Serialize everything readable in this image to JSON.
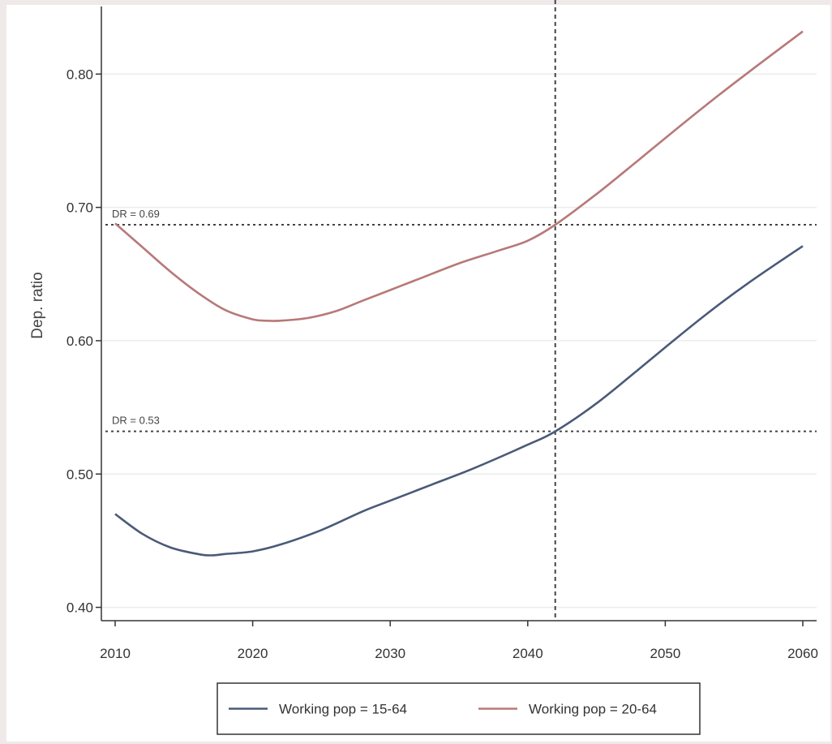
{
  "chart_data": {
    "type": "line",
    "title": "",
    "xlabel": "",
    "ylabel": "Dep. ratio",
    "xlim": [
      2010,
      2060
    ],
    "ylim": [
      0.39,
      0.83
    ],
    "xticks": [
      2010,
      2020,
      2030,
      2040,
      2050,
      2060
    ],
    "xtick_labels": [
      "2010",
      "2020",
      "2030",
      "2040",
      "2050",
      "2060"
    ],
    "yticks": [
      0.4,
      0.5,
      0.6,
      0.7,
      0.8
    ],
    "ytick_labels": [
      "0.40",
      "0.50",
      "0.60",
      "0.70",
      "0.80"
    ],
    "grid": "horizontal",
    "legend_position": "bottom",
    "series": [
      {
        "name": "Working pop = 15-64",
        "color": "#4a5a78",
        "x": [
          2010,
          2012,
          2014,
          2016,
          2017,
          2018,
          2020,
          2022,
          2025,
          2028,
          2030,
          2033,
          2036,
          2040,
          2042,
          2045,
          2048,
          2050,
          2053,
          2056,
          2060
        ],
        "y": [
          0.47,
          0.455,
          0.445,
          0.44,
          0.439,
          0.44,
          0.442,
          0.447,
          0.458,
          0.472,
          0.48,
          0.492,
          0.504,
          0.522,
          0.532,
          0.553,
          0.578,
          0.595,
          0.62,
          0.643,
          0.671
        ]
      },
      {
        "name": "Working pop = 20-64",
        "color": "#b87878",
        "x": [
          2010,
          2012,
          2014,
          2016,
          2018,
          2020,
          2021,
          2022,
          2024,
          2026,
          2028,
          2030,
          2032,
          2035,
          2038,
          2040,
          2042,
          2045,
          2048,
          2050,
          2053,
          2056,
          2060
        ],
        "y": [
          0.688,
          0.67,
          0.652,
          0.636,
          0.623,
          0.616,
          0.615,
          0.615,
          0.617,
          0.622,
          0.63,
          0.638,
          0.646,
          0.658,
          0.668,
          0.675,
          0.687,
          0.71,
          0.735,
          0.752,
          0.777,
          0.801,
          0.832
        ]
      }
    ],
    "reference_lines": [
      {
        "axis": "y",
        "value": 0.687,
        "label": "DR = 0.69"
      },
      {
        "axis": "y",
        "value": 0.532,
        "label": "DR = 0.53"
      },
      {
        "axis": "x",
        "value": 2042
      }
    ],
    "legend": {
      "items": [
        "Working pop = 15-64",
        "Working pop = 20-64"
      ]
    }
  }
}
